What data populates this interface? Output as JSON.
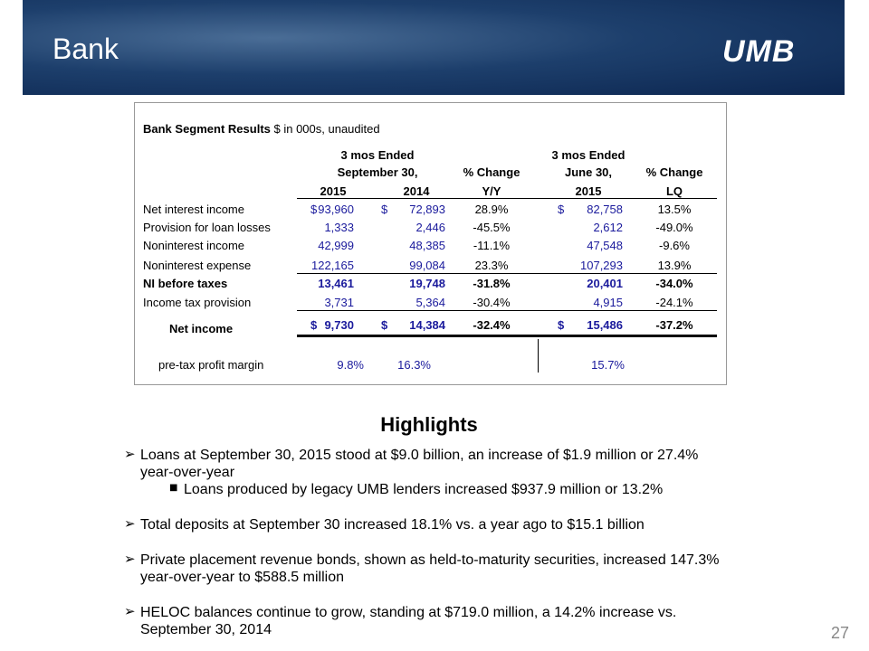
{
  "header": {
    "title": "Bank",
    "logo": "UMB"
  },
  "table": {
    "title": "Bank Segment Results",
    "subtitle": "$ in 000s, unaudited",
    "currency": "$",
    "column_groups": [
      "3 mos Ended",
      "3 mos Ended"
    ],
    "header_row2": [
      "September 30,",
      "% Change",
      "June 30,",
      "% Change"
    ],
    "header_row3": [
      "2015",
      "2014",
      "Y/Y",
      "2015",
      "LQ"
    ],
    "rows": [
      {
        "label": "Net interest income",
        "values": [
          "93,960",
          "72,893",
          "28.9%",
          "82,758",
          "13.5%"
        ],
        "currency": true,
        "bold": false
      },
      {
        "label": "Provision for loan losses",
        "values": [
          "1,333",
          "2,446",
          "-45.5%",
          "2,612",
          "-49.0%"
        ],
        "currency": false,
        "bold": false
      },
      {
        "label": "Noninterest income",
        "values": [
          "42,999",
          "48,385",
          "-11.1%",
          "47,548",
          "-9.6%"
        ],
        "currency": false,
        "bold": false
      },
      {
        "label": "Noninterest expense",
        "values": [
          "122,165",
          "99,084",
          "23.3%",
          "107,293",
          "13.9%"
        ],
        "currency": false,
        "bold": false
      },
      {
        "label": "NI before taxes",
        "values": [
          "13,461",
          "19,748",
          "-31.8%",
          "20,401",
          "-34.0%"
        ],
        "currency": false,
        "bold": true
      },
      {
        "label": "Income tax provision",
        "values": [
          "3,731",
          "5,364",
          "-30.4%",
          "4,915",
          "-24.1%"
        ],
        "currency": false,
        "bold": false
      },
      {
        "label": "Net income",
        "values": [
          "9,730",
          "14,384",
          "-32.4%",
          "15,486",
          "-37.2%"
        ],
        "currency": true,
        "bold": true
      }
    ],
    "margin": {
      "label": "pre-tax profit margin",
      "values": [
        "9.8%",
        "16.3%",
        "15.7%"
      ]
    }
  },
  "highlights": {
    "title": "Highlights",
    "bullets": [
      {
        "text": "Loans at September 30, 2015 stood at $9.0 billion, an increase of  $1.9 million or 27.4% year-over-year",
        "sub": "Loans produced by legacy UMB lenders increased $937.9 million or 13.2%"
      },
      {
        "text": "Total deposits at September 30 increased 18.1% vs. a year ago to $15.1 billion"
      },
      {
        "text": "Private placement revenue bonds, shown as held-to-maturity securities, increased 147.3% year-over-year to $588.5 million"
      },
      {
        "text": "HELOC balances continue to grow, standing at $719.0 million, a 14.2% increase vs. September 30, 2014"
      }
    ]
  },
  "page_number": "27"
}
